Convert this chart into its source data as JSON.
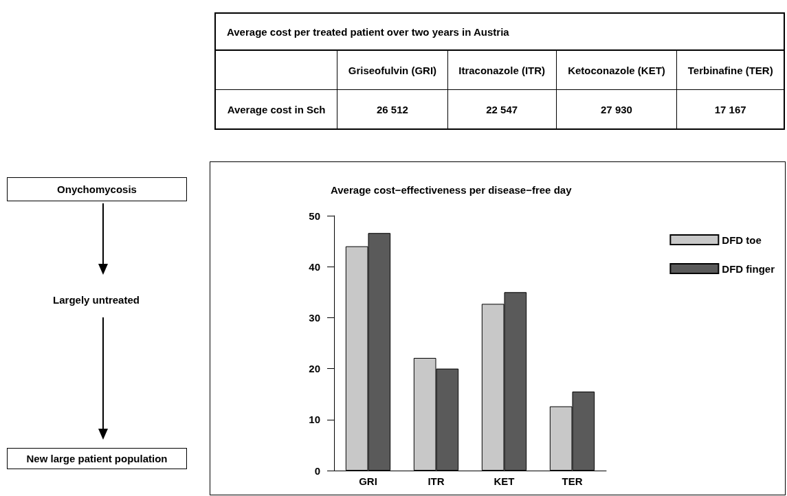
{
  "chart_data": [
    {
      "type": "other",
      "title": "Average cost per treated patient over two years in Austria",
      "categories": [
        "Griseofulvin (GRI)",
        "Itraconazole (ITR)",
        "Ketoconazole (KET)",
        "Terbinafine (TER)"
      ],
      "value_labels": [
        "26 512",
        "22 547",
        "27 930",
        "17 167"
      ],
      "annotations": [
        "Average cost in Sch"
      ]
    },
    {
      "type": "other",
      "annotations": [
        "Onychomycosis",
        "Largely untreated",
        "New large patient population"
      ]
    },
    {
      "type": "bar",
      "title": "Average cost−effectiveness per disease−free day",
      "categories": [
        "GRI",
        "ITR",
        "KET",
        "TER"
      ],
      "series": [
        {
          "name": "DFD toe",
          "color": "#c8c8c8",
          "values": [
            44.0,
            22.1,
            32.7,
            12.6
          ]
        },
        {
          "name": "DFD finger",
          "color": "#5a5a5a",
          "values": [
            46.6,
            20.0,
            35.0,
            15.5
          ]
        }
      ],
      "ylim": [
        0,
        50
      ],
      "yticks": [
        0,
        10,
        20,
        30,
        40,
        50
      ],
      "grid": false,
      "legend": "right"
    }
  ]
}
